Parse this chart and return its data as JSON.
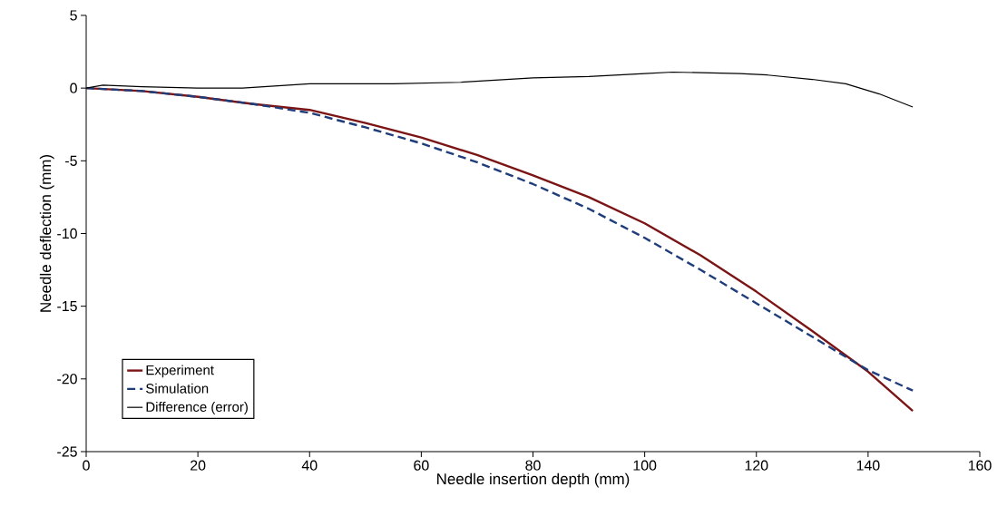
{
  "chart_data": {
    "type": "line",
    "xlabel": "Needle insertion depth (mm)",
    "ylabel": "Needle deflection (mm)",
    "xlim": [
      0,
      160
    ],
    "ylim": [
      -25,
      5
    ],
    "xticks": [
      0,
      20,
      40,
      60,
      80,
      100,
      120,
      140,
      160
    ],
    "yticks": [
      -25,
      -20,
      -15,
      -10,
      -5,
      0,
      5
    ],
    "grid": false,
    "legend": "bottom left",
    "marker": "none",
    "series": [
      {
        "name": "Experiment",
        "color": "#7b1414",
        "line_style": "solid",
        "x": [
          0,
          10,
          20,
          30,
          40,
          50,
          60,
          70,
          80,
          90,
          100,
          110,
          120,
          130,
          140,
          148
        ],
        "values": [
          0,
          -0.2,
          -0.6,
          -1.1,
          -1.5,
          -2.4,
          -3.4,
          -4.6,
          -6.0,
          -7.5,
          -9.3,
          -11.5,
          -14.0,
          -16.7,
          -19.5,
          -22.2
        ]
      },
      {
        "name": "Simulation",
        "color": "#1f3d7a",
        "line_style": "dashed",
        "x": [
          0,
          10,
          20,
          30,
          40,
          50,
          60,
          70,
          80,
          90,
          100,
          110,
          120,
          130,
          140,
          148
        ],
        "values": [
          0,
          -0.2,
          -0.6,
          -1.1,
          -1.7,
          -2.7,
          -3.8,
          -5.1,
          -6.6,
          -8.3,
          -10.3,
          -12.5,
          -14.8,
          -17.1,
          -19.4,
          -20.8
        ]
      },
      {
        "name": "Difference (error)",
        "color": "#000000",
        "line_style": "solid",
        "x": [
          0,
          3,
          10,
          20,
          28,
          40,
          55,
          67,
          80,
          90,
          100,
          105,
          117,
          122,
          130,
          136,
          142,
          148
        ],
        "values": [
          0,
          0.2,
          0.1,
          0,
          0,
          0.3,
          0.3,
          0.4,
          0.7,
          0.8,
          1.0,
          1.1,
          1.0,
          0.9,
          0.6,
          0.3,
          -0.4,
          -1.3
        ]
      }
    ]
  }
}
